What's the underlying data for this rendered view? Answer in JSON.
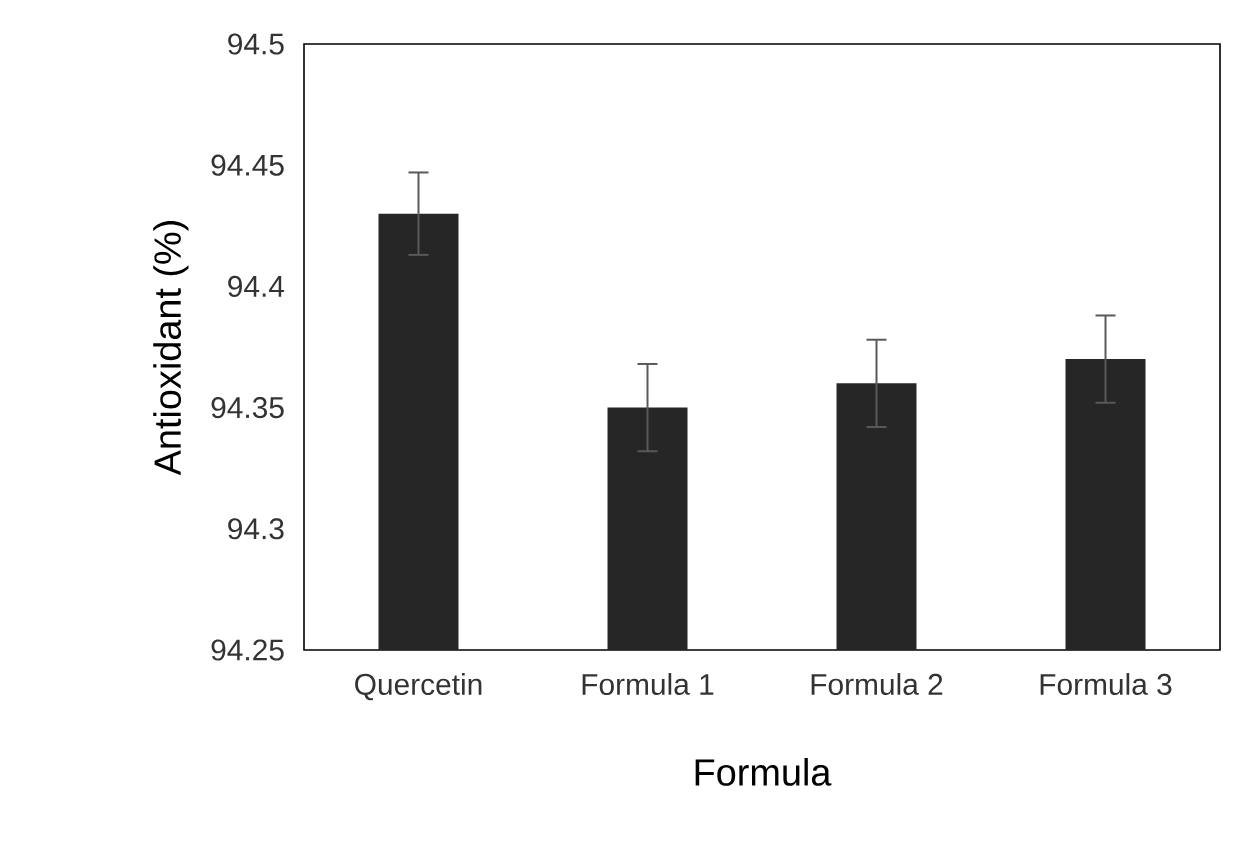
{
  "chart_data": {
    "type": "bar",
    "xlabel": "Formula",
    "ylabel": "Antioxidant (%)",
    "categories": [
      "Quercetin",
      "Formula 1",
      "Formula 2",
      "Formula 3"
    ],
    "values": [
      94.43,
      94.35,
      94.36,
      94.37
    ],
    "errors": [
      0.017,
      0.018,
      0.018,
      0.018
    ],
    "color": "#262626",
    "ylim": [
      94.25,
      94.5
    ],
    "yticks": [
      94.25,
      94.3,
      94.35,
      94.4,
      94.45,
      94.5
    ],
    "grid": false
  }
}
